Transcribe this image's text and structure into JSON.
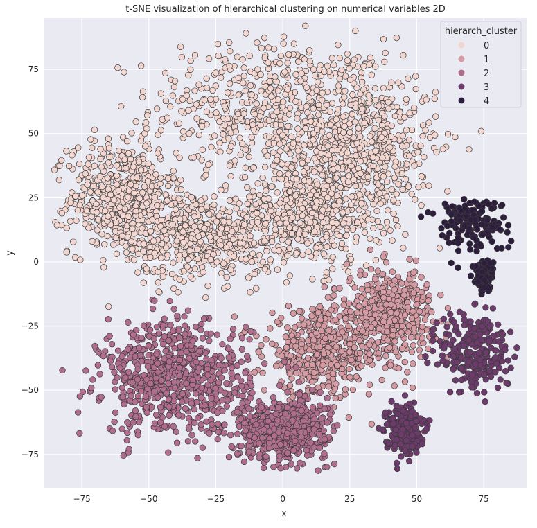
{
  "chart_data": {
    "type": "scatter",
    "title": "t-SNE visualization of hierarchical clustering on numerical variables 2D",
    "xlabel": "x",
    "ylabel": "y",
    "xlim": [
      -89,
      91
    ],
    "ylim": [
      -88,
      95
    ],
    "xticks": [
      -75,
      -50,
      -25,
      0,
      25,
      50,
      75
    ],
    "yticks": [
      75,
      50,
      25,
      0,
      -25,
      -50,
      -75
    ],
    "grid": true,
    "background": "#eaeaf2",
    "grid_color": "#ffffff",
    "legend": {
      "title": "hierarch_cluster",
      "position": "top-right",
      "entries": [
        "0",
        "1",
        "2",
        "3",
        "4"
      ]
    },
    "series": [
      {
        "name": "0",
        "color": "#f3d6d0",
        "approx_points": 2600,
        "regions": [
          {
            "center": [
              -5,
              60
            ],
            "spread": [
              40,
              25
            ]
          },
          {
            "center": [
              -60,
              25
            ],
            "spread": [
              18,
              20
            ]
          },
          {
            "center": [
              30,
              45
            ],
            "spread": [
              25,
              25
            ]
          },
          {
            "center": [
              -30,
              10
            ],
            "spread": [
              25,
              15
            ]
          },
          {
            "center": [
              10,
              20
            ],
            "spread": [
              25,
              20
            ]
          }
        ]
      },
      {
        "name": "1",
        "color": "#d59aa2",
        "approx_points": 900,
        "regions": [
          {
            "center": [
              15,
              -35
            ],
            "spread": [
              20,
              15
            ]
          },
          {
            "center": [
              40,
              -20
            ],
            "spread": [
              15,
              15
            ]
          }
        ]
      },
      {
        "name": "2",
        "color": "#b06d8c",
        "approx_points": 1400,
        "regions": [
          {
            "center": [
              -40,
              -45
            ],
            "spread": [
              25,
              20
            ]
          },
          {
            "center": [
              0,
              -65
            ],
            "spread": [
              15,
              10
            ]
          }
        ]
      },
      {
        "name": "3",
        "color": "#6c3b6b",
        "approx_points": 500,
        "regions": [
          {
            "center": [
              72,
              -35
            ],
            "spread": [
              12,
              15
            ]
          },
          {
            "center": [
              45,
              -65
            ],
            "spread": [
              6,
              8
            ]
          }
        ]
      },
      {
        "name": "4",
        "color": "#2d1e3e",
        "approx_points": 300,
        "regions": [
          {
            "center": [
              70,
              15
            ],
            "spread": [
              12,
              10
            ]
          },
          {
            "center": [
              75,
              -5
            ],
            "spread": [
              3,
              5
            ]
          }
        ]
      }
    ]
  }
}
